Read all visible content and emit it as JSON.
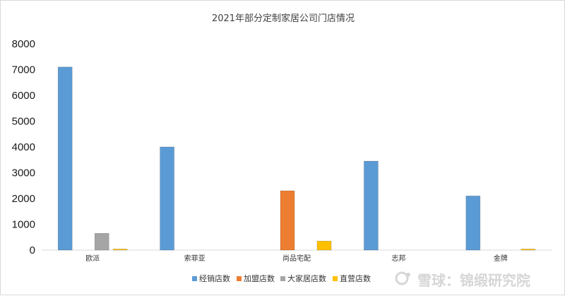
{
  "chart_data": {
    "type": "bar",
    "title": "2021年部分定制家居公司门店情况",
    "categories": [
      "欧派",
      "索菲亚",
      "尚品宅配",
      "志邦",
      "金牌"
    ],
    "series": [
      {
        "name": "经销店数",
        "color": "#5b9bd5",
        "values": [
          7100,
          4000,
          0,
          3450,
          2100
        ]
      },
      {
        "name": "加盟店数",
        "color": "#ed7d31",
        "values": [
          0,
          0,
          2300,
          0,
          0
        ]
      },
      {
        "name": "大家居店数",
        "color": "#a5a5a5",
        "values": [
          650,
          0,
          0,
          0,
          0
        ]
      },
      {
        "name": "直营店数",
        "color": "#ffc000",
        "values": [
          40,
          0,
          350,
          0,
          40
        ]
      }
    ],
    "ylim": [
      0,
      8000
    ],
    "yticks": [
      0,
      1000,
      2000,
      3000,
      4000,
      5000,
      6000,
      7000,
      8000
    ],
    "grid": false,
    "legend": "bottom",
    "xlabel": "",
    "ylabel": ""
  },
  "watermark": {
    "text": "雪球：锦缎研究院",
    "icon": "snowball-logo-icon"
  }
}
